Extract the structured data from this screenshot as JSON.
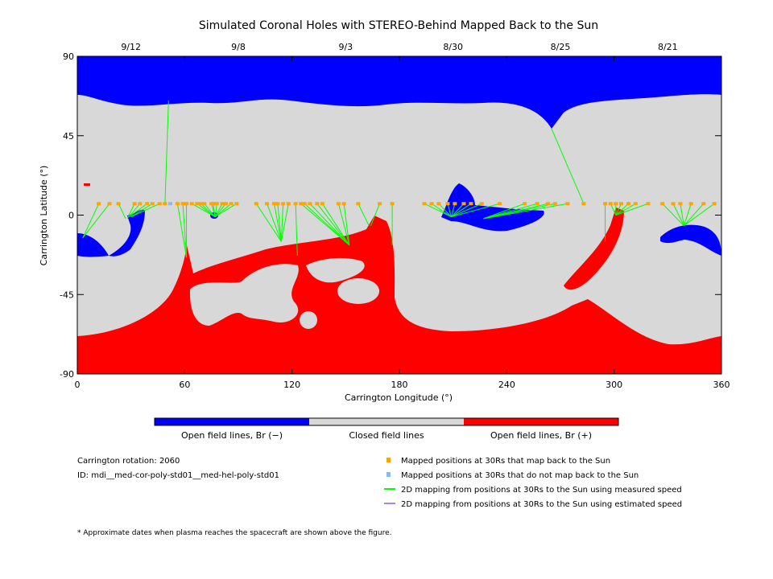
{
  "chart_data": {
    "type": "map",
    "title": "Simulated Coronal Holes with STEREO-Behind Mapped Back to the Sun",
    "xlabel": "Carrington Longitude (°)",
    "ylabel": "Carrington Latitude (°)",
    "xlim": [
      0,
      360
    ],
    "ylim": [
      -90,
      90
    ],
    "xticks": [
      "0",
      "60",
      "120",
      "180",
      "240",
      "300",
      "360"
    ],
    "xtick_values": [
      0,
      60,
      120,
      180,
      240,
      300,
      360
    ],
    "yticks": [
      "90",
      "45",
      "0",
      "-45",
      "-90"
    ],
    "ytick_values": [
      90,
      45,
      0,
      -45,
      -90
    ],
    "top_dates": [
      {
        "label": "9/12",
        "lon": 30
      },
      {
        "label": "9/8",
        "lon": 90
      },
      {
        "label": "9/3",
        "lon": 150
      },
      {
        "label": "8/30",
        "lon": 210
      },
      {
        "label": "8/25",
        "lon": 270
      },
      {
        "label": "8/21",
        "lon": 330
      }
    ],
    "colors": {
      "open_neg": "#0000ff",
      "closed": "#d8d8d8",
      "open_pos": "#ff0000",
      "mapped": "#ffa500",
      "not_mapped": "#87b8f0",
      "measured": "#00ff00",
      "estimated": "#b080f0"
    },
    "mapped_lat": 6.5,
    "mapped_points": [
      [
        12,
        3,
        -13
      ],
      [
        18,
        3,
        -13
      ],
      [
        23,
        27,
        -2
      ],
      [
        32,
        28,
        -2
      ],
      [
        35,
        29,
        -1
      ],
      [
        39,
        29,
        -1
      ],
      [
        42,
        30,
        -1
      ],
      [
        46,
        30,
        -1
      ],
      [
        49,
        51,
        65
      ],
      [
        56,
        61,
        -24
      ],
      [
        59,
        61,
        -24
      ],
      [
        61,
        61,
        -24
      ],
      [
        64,
        77,
        -1
      ],
      [
        67,
        77,
        -1
      ],
      [
        69,
        77,
        -1
      ],
      [
        71,
        77,
        -1
      ],
      [
        75,
        77,
        -1
      ],
      [
        76,
        77,
        -1
      ],
      [
        78,
        77,
        -1
      ],
      [
        81,
        77,
        -1
      ],
      [
        83,
        77,
        -1
      ],
      [
        86,
        77,
        -1
      ],
      [
        89,
        77,
        -1
      ],
      [
        100,
        114,
        -15
      ],
      [
        106,
        114,
        -15
      ],
      [
        110,
        114,
        -15
      ],
      [
        112,
        114,
        -15
      ],
      [
        115,
        114,
        -15
      ],
      [
        118,
        114,
        -15
      ],
      [
        122,
        123,
        -23
      ],
      [
        125,
        152,
        -17
      ],
      [
        127,
        152,
        -17
      ],
      [
        130,
        152,
        -17
      ],
      [
        134,
        152,
        -17
      ],
      [
        137,
        152,
        -17
      ],
      [
        146,
        152,
        -17
      ],
      [
        149,
        152,
        -17
      ],
      [
        157,
        163,
        -6
      ],
      [
        169,
        164,
        -6
      ],
      [
        176,
        176,
        -17
      ],
      [
        194,
        209,
        -1
      ],
      [
        198,
        209,
        -1
      ],
      [
        202,
        209,
        -1
      ],
      [
        207,
        209,
        -1
      ],
      [
        211,
        209,
        -1
      ],
      [
        216,
        209,
        -1
      ],
      [
        220,
        209,
        -1
      ],
      [
        226,
        209,
        -1
      ],
      [
        236,
        209,
        -1
      ],
      [
        250,
        227,
        -2
      ],
      [
        257,
        227,
        -2
      ],
      [
        263,
        227,
        -2
      ],
      [
        267,
        227,
        -2
      ],
      [
        274,
        227,
        -2
      ],
      [
        283,
        265,
        49
      ],
      [
        295,
        295,
        -15
      ],
      [
        298,
        301,
        0
      ],
      [
        301,
        301,
        0
      ],
      [
        304,
        301,
        0
      ],
      [
        308,
        301,
        0
      ],
      [
        312,
        301,
        0
      ],
      [
        319,
        301,
        0
      ],
      [
        327,
        339,
        -6
      ],
      [
        333,
        339,
        -6
      ],
      [
        337,
        339,
        -6
      ],
      [
        343,
        339,
        -6
      ],
      [
        350,
        339,
        -6
      ],
      [
        356,
        339,
        -6
      ]
    ],
    "unmapped_points": [
      52
    ]
  },
  "colorbar": {
    "labels": [
      "Open field lines, Br (−)",
      "Closed field lines",
      "Open field lines, Br (+)"
    ]
  },
  "info": {
    "rotation": "Carrington rotation: 2060",
    "id": "ID: mdi__med-cor-poly-std01__med-hel-poly-std01"
  },
  "legend": [
    "Mapped positions at 30Rs that map back to the Sun",
    "Mapped positions at 30Rs that do not map back to the Sun",
    "2D mapping from positions at 30Rs to the Sun using measured speed",
    "2D mapping from positions at 30Rs to the Sun using estimated speed"
  ],
  "footnote": "* Approximate dates when plasma reaches the spacecraft are shown above the figure."
}
